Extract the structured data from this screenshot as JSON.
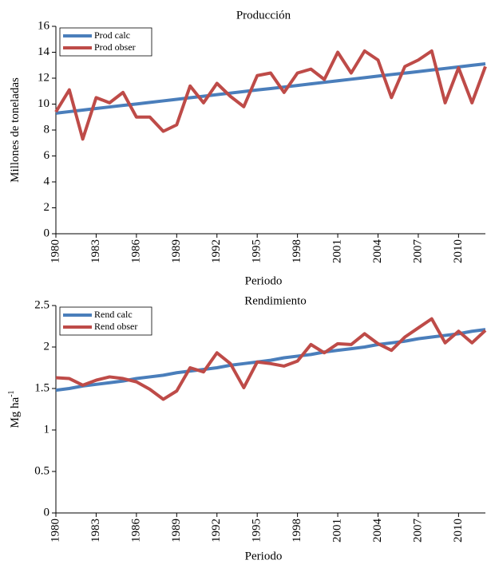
{
  "chart_data": [
    {
      "type": "line",
      "title": "Producción",
      "xlabel": "Periodo",
      "ylabel": "Millones de toneladas",
      "x": [
        1980,
        1981,
        1982,
        1983,
        1984,
        1985,
        1986,
        1987,
        1988,
        1989,
        1990,
        1991,
        1992,
        1993,
        1994,
        1995,
        1996,
        1997,
        1998,
        1999,
        2000,
        2001,
        2002,
        2003,
        2004,
        2005,
        2006,
        2007,
        2008,
        2009,
        2010,
        2011,
        2012
      ],
      "xlim": [
        1980,
        2012
      ],
      "xticks": [
        1980,
        1983,
        1986,
        1989,
        1992,
        1995,
        1998,
        2001,
        2004,
        2007,
        2010
      ],
      "ylim": [
        0,
        16
      ],
      "yticks": [
        0,
        2,
        4,
        6,
        8,
        10,
        12,
        14,
        16
      ],
      "grid": false,
      "legend": "upper left",
      "series": [
        {
          "name": "Prod calc",
          "color": "#4a7ebb",
          "values": [
            9.3,
            9.42,
            9.54,
            9.66,
            9.78,
            9.9,
            10.01,
            10.13,
            10.25,
            10.37,
            10.49,
            10.61,
            10.73,
            10.85,
            10.97,
            11.09,
            11.2,
            11.32,
            11.44,
            11.56,
            11.68,
            11.8,
            11.92,
            12.04,
            12.16,
            12.28,
            12.39,
            12.51,
            12.63,
            12.75,
            12.87,
            12.99,
            13.11
          ]
        },
        {
          "name": "Prod obser",
          "color": "#be4b48",
          "values": [
            9.4,
            11.1,
            7.3,
            10.5,
            10.1,
            10.9,
            9.0,
            9.0,
            7.9,
            8.4,
            11.4,
            10.1,
            11.6,
            10.6,
            9.8,
            12.2,
            12.4,
            10.9,
            12.4,
            12.7,
            11.9,
            14.0,
            12.4,
            14.1,
            13.4,
            10.5,
            12.9,
            13.4,
            14.1,
            10.1,
            12.8,
            10.1,
            12.9
          ]
        }
      ]
    },
    {
      "type": "line",
      "title": "Rendimiento",
      "xlabel": "Periodo",
      "ylabel": "Mg ha",
      "ylabel_superscript": "-1",
      "x": [
        1980,
        1981,
        1982,
        1983,
        1984,
        1985,
        1986,
        1987,
        1988,
        1989,
        1990,
        1991,
        1992,
        1993,
        1994,
        1995,
        1996,
        1997,
        1998,
        1999,
        2000,
        2001,
        2002,
        2003,
        2004,
        2005,
        2006,
        2007,
        2008,
        2009,
        2010,
        2011,
        2012
      ],
      "xlim": [
        1980,
        2012
      ],
      "xticks": [
        1980,
        1983,
        1986,
        1989,
        1992,
        1995,
        1998,
        2001,
        2004,
        2007,
        2010
      ],
      "ylim": [
        0,
        2.5
      ],
      "yticks": [
        0,
        0.5,
        1,
        1.5,
        2,
        2.5
      ],
      "grid": false,
      "legend": "upper left",
      "series": [
        {
          "name": "Rend calc",
          "color": "#4a7ebb",
          "values": [
            1.48,
            1.5,
            1.53,
            1.55,
            1.57,
            1.59,
            1.62,
            1.64,
            1.66,
            1.69,
            1.71,
            1.73,
            1.75,
            1.78,
            1.8,
            1.82,
            1.84,
            1.87,
            1.89,
            1.91,
            1.94,
            1.96,
            1.98,
            2.0,
            2.03,
            2.05,
            2.07,
            2.1,
            2.12,
            2.14,
            2.16,
            2.19,
            2.21
          ]
        },
        {
          "name": "Rend obser",
          "color": "#be4b48",
          "values": [
            1.63,
            1.62,
            1.54,
            1.6,
            1.64,
            1.62,
            1.58,
            1.49,
            1.37,
            1.47,
            1.75,
            1.7,
            1.93,
            1.8,
            1.51,
            1.82,
            1.8,
            1.77,
            1.83,
            2.03,
            1.93,
            2.04,
            2.03,
            2.16,
            2.04,
            1.96,
            2.12,
            2.23,
            2.34,
            2.05,
            2.19,
            2.05,
            2.2
          ]
        }
      ]
    }
  ]
}
